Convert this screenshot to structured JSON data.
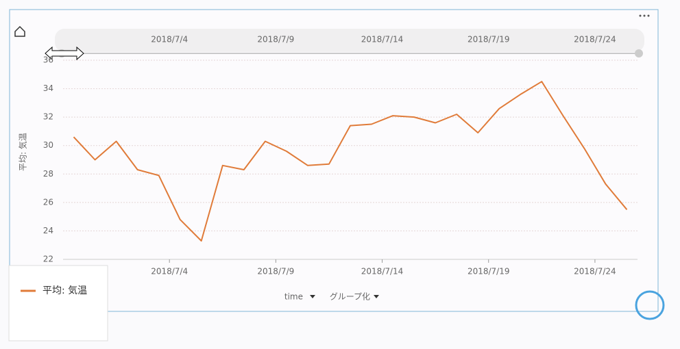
{
  "chart_data": {
    "type": "line",
    "ylabel": "平均: 気温",
    "xlabel": "time",
    "group_label": "グループ化",
    "x": [
      "2018/6/29",
      "2018/6/30",
      "2018/7/1",
      "2018/7/2",
      "2018/7/3",
      "2018/7/4",
      "2018/7/5",
      "2018/7/6",
      "2018/7/7",
      "2018/7/8",
      "2018/7/9",
      "2018/7/10",
      "2018/7/11",
      "2018/7/12",
      "2018/7/13",
      "2018/7/14",
      "2018/7/15",
      "2018/7/16",
      "2018/7/17",
      "2018/7/18",
      "2018/7/19",
      "2018/7/20",
      "2018/7/21",
      "2018/7/22",
      "2018/7/23",
      "2018/7/24",
      "2018/7/25"
    ],
    "series": [
      {
        "name": "平均: 気温",
        "color": "#e07b39",
        "values": [
          30.6,
          29.0,
          30.3,
          28.3,
          27.9,
          24.8,
          23.3,
          28.6,
          28.3,
          30.3,
          29.6,
          28.6,
          28.7,
          31.4,
          31.5,
          32.1,
          32.0,
          31.6,
          32.2,
          30.9,
          32.6,
          33.6,
          34.5,
          32.1,
          29.8,
          27.3,
          25.5
        ]
      }
    ],
    "xlim": [
      "2018/6/29",
      "2018/7/26"
    ],
    "xticks": [
      "2018/7/4",
      "2018/7/9",
      "2018/7/14",
      "2018/7/19",
      "2018/7/24"
    ],
    "ylim": [
      22,
      36
    ],
    "yticks": [
      22,
      24,
      26,
      28,
      30,
      32,
      34,
      36
    ],
    "grid": true
  }
}
